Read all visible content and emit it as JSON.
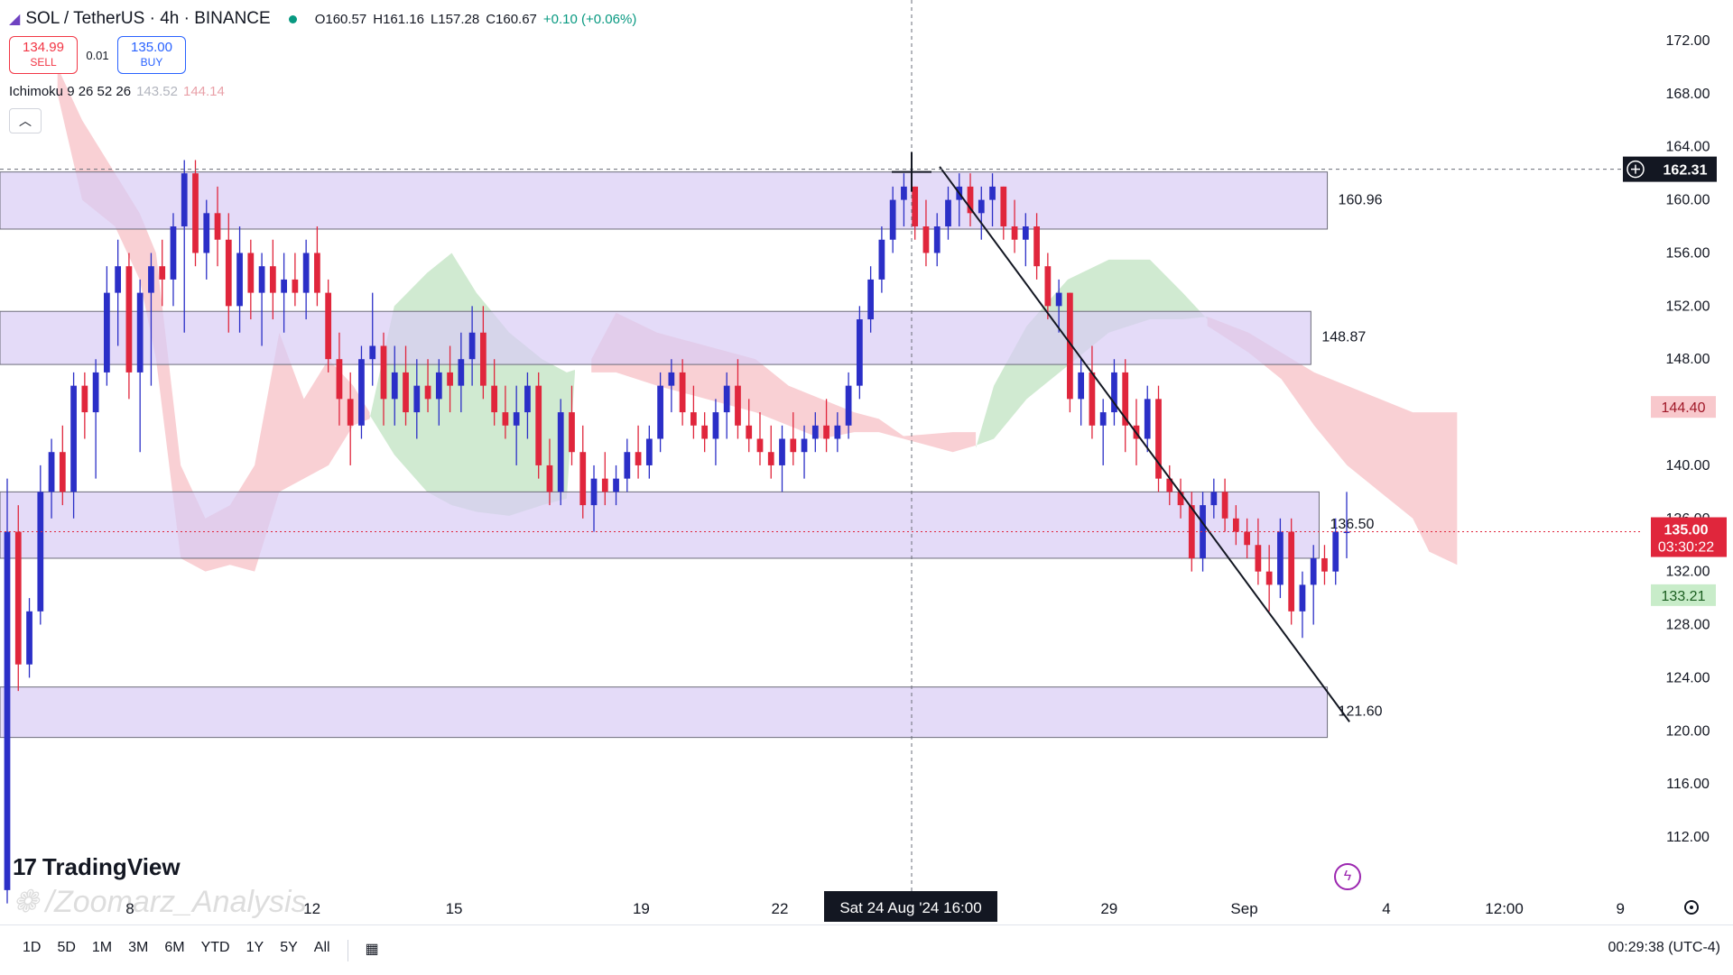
{
  "header": {
    "symbol": "SOL / TetherUS · 4h · BINANCE",
    "open": "O160.57",
    "high": "H161.16",
    "low": "L157.28",
    "close": "C160.67",
    "change": "+0.10 (+0.06%)"
  },
  "trade": {
    "sell_price": "134.99",
    "sell_label": "SELL",
    "spread": "0.01",
    "buy_price": "135.00",
    "buy_label": "BUY"
  },
  "indicator": {
    "name": "Ichimoku 9 26 52 26",
    "value1": "143.52",
    "value2": "144.14"
  },
  "branding": {
    "logo": "TradingView",
    "watermark": "/Zoomarz_Analysis"
  },
  "timeframes": [
    "1D",
    "5D",
    "1M",
    "3M",
    "6M",
    "YTD",
    "1Y",
    "5Y",
    "All"
  ],
  "clock": "00:29:38 (UTC-4)",
  "colors": {
    "bull": "#2b2fc7",
    "bear": "#e0263c",
    "zone": "#d9ccf5",
    "cloud_green": "#c8e6c9",
    "cloud_red": "#f8c8cc"
  },
  "chart_data": {
    "type": "candlestick",
    "symbol": "SOL/USDT",
    "interval": "4h",
    "ylim": [
      110,
      174
    ],
    "y_ticks": [
      "172.00",
      "168.00",
      "164.00",
      "160.00",
      "156.00",
      "152.00",
      "148.00",
      "144.00",
      "140.00",
      "136.00",
      "132.00",
      "128.00",
      "124.00",
      "120.00",
      "116.00",
      "112.00"
    ],
    "x_ticks": [
      {
        "label": "8",
        "pos": 0.075
      },
      {
        "label": "12",
        "pos": 0.18
      },
      {
        "label": "15",
        "pos": 0.262
      },
      {
        "label": "19",
        "pos": 0.37
      },
      {
        "label": "22",
        "pos": 0.45
      },
      {
        "label": "29",
        "pos": 0.64
      },
      {
        "label": "Sep",
        "pos": 0.718
      },
      {
        "label": "4",
        "pos": 0.8
      },
      {
        "label": "12:00",
        "pos": 0.868
      },
      {
        "label": "9",
        "pos": 0.935
      }
    ],
    "crosshair": {
      "time_label": "Sat 24 Aug '24   16:00",
      "price": "162.31"
    },
    "price_labels": [
      {
        "value": 144.4,
        "text": "144.40",
        "style": "cloud"
      },
      {
        "value": 135.0,
        "text": "135.00",
        "countdown": "03:30:22",
        "style": "current"
      },
      {
        "value": 133.21,
        "text": "133.21",
        "style": "green"
      }
    ],
    "zones": [
      {
        "top": 162.1,
        "bottom": 157.8,
        "label": "160.96",
        "end": 0.808
      },
      {
        "top": 151.6,
        "bottom": 147.6,
        "label": "148.87",
        "end": 0.798
      },
      {
        "top": 138.0,
        "bottom": 133.0,
        "label": "136.50",
        "end": 0.803
      },
      {
        "top": 123.3,
        "bottom": 119.5,
        "label": "121.60",
        "end": 0.808
      }
    ],
    "trendline": {
      "from": [
        0.572,
        162.5
      ],
      "to": [
        0.816,
        120.0
      ]
    },
    "cloud_green": [
      [
        0.225,
        143.5,
        143.8
      ],
      [
        0.24,
        152.0,
        140.8
      ],
      [
        0.26,
        154.5,
        138.0
      ],
      [
        0.275,
        156.0,
        137.0
      ],
      [
        0.29,
        153.0,
        136.5
      ],
      [
        0.31,
        150.0,
        136.2
      ],
      [
        0.33,
        148.0,
        137.0
      ],
      [
        0.345,
        147.0,
        137.5
      ],
      [
        0.35,
        147.2,
        147.0
      ],
      [
        0.594,
        141.3,
        141.5
      ],
      [
        0.605,
        146.0,
        142.0
      ],
      [
        0.625,
        150.5,
        145.0
      ],
      [
        0.65,
        154.0,
        147.5
      ],
      [
        0.675,
        155.5,
        150.0
      ],
      [
        0.7,
        155.5,
        151.0
      ],
      [
        0.72,
        153.0,
        151.0
      ],
      [
        0.735,
        151.0,
        151.2
      ]
    ],
    "cloud_red": [
      [
        0.035,
        170.0,
        168.0
      ],
      [
        0.05,
        166.0,
        160.0
      ],
      [
        0.07,
        162.0,
        158.0
      ],
      [
        0.085,
        159.0,
        154.0
      ],
      [
        0.095,
        156.0,
        148.0
      ],
      [
        0.11,
        140.0,
        133.0
      ],
      [
        0.125,
        136.0,
        132.0
      ],
      [
        0.14,
        137.0,
        132.5
      ],
      [
        0.155,
        140.0,
        132.0
      ],
      [
        0.17,
        150.0,
        138.0
      ],
      [
        0.185,
        145.0,
        139.0
      ],
      [
        0.2,
        148.0,
        140.0
      ],
      [
        0.215,
        146.0,
        143.0
      ],
      [
        0.225,
        144.0,
        143.5
      ],
      [
        0.36,
        148.0,
        147.0
      ],
      [
        0.375,
        151.5,
        147.0
      ],
      [
        0.4,
        150.0,
        146.0
      ],
      [
        0.43,
        149.0,
        145.0
      ],
      [
        0.46,
        148.0,
        144.0
      ],
      [
        0.48,
        146.0,
        143.0
      ],
      [
        0.5,
        145.0,
        142.0
      ],
      [
        0.52,
        144.0,
        142.5
      ],
      [
        0.535,
        143.5,
        142.5
      ],
      [
        0.55,
        142.2,
        142.0
      ],
      [
        0.58,
        142.5,
        141.0
      ],
      [
        0.594,
        142.5,
        141.5
      ],
      [
        0.735,
        151.2,
        150.5
      ],
      [
        0.76,
        150.0,
        148.5
      ],
      [
        0.78,
        148.5,
        146.5
      ],
      [
        0.8,
        147.0,
        143.0
      ],
      [
        0.82,
        146.0,
        140.0
      ],
      [
        0.84,
        145.0,
        138.0
      ],
      [
        0.86,
        144.0,
        136.0
      ],
      [
        0.87,
        144.0,
        133.5
      ],
      [
        0.887,
        144.0,
        132.5
      ]
    ],
    "candles": [
      [
        108,
        139,
        107,
        135
      ],
      [
        135,
        137,
        123,
        125
      ],
      [
        125,
        130,
        124,
        129
      ],
      [
        129,
        140,
        128,
        138
      ],
      [
        138,
        142,
        136,
        141
      ],
      [
        141,
        143,
        137,
        138
      ],
      [
        138,
        147,
        136,
        146
      ],
      [
        146,
        147,
        142,
        144
      ],
      [
        144,
        148,
        139,
        147
      ],
      [
        147,
        155,
        146,
        153
      ],
      [
        153,
        157,
        149,
        155
      ],
      [
        155,
        156,
        145,
        147
      ],
      [
        147,
        154,
        141,
        153
      ],
      [
        153,
        156,
        146,
        155
      ],
      [
        155,
        157,
        152,
        154
      ],
      [
        154,
        159,
        152,
        158
      ],
      [
        158,
        163,
        150,
        162
      ],
      [
        162,
        163,
        155,
        156
      ],
      [
        156,
        160,
        154,
        159
      ],
      [
        159,
        161,
        155,
        157
      ],
      [
        157,
        159,
        150,
        152
      ],
      [
        152,
        158,
        150,
        156
      ],
      [
        156,
        157,
        151,
        153
      ],
      [
        153,
        156,
        149,
        155
      ],
      [
        155,
        157,
        151,
        153
      ],
      [
        153,
        156,
        150,
        154
      ],
      [
        154,
        156,
        152,
        153
      ],
      [
        153,
        157,
        151,
        156
      ],
      [
        156,
        158,
        152,
        153
      ],
      [
        153,
        154,
        147,
        148
      ],
      [
        148,
        150,
        143,
        145
      ],
      [
        145,
        147,
        140,
        143
      ],
      [
        143,
        149,
        142,
        148
      ],
      [
        148,
        153,
        146,
        149
      ],
      [
        149,
        150,
        143,
        145
      ],
      [
        145,
        149,
        143,
        147
      ],
      [
        147,
        149,
        143,
        144
      ],
      [
        144,
        148,
        142,
        146
      ],
      [
        146,
        148,
        144,
        145
      ],
      [
        145,
        148,
        143,
        147
      ],
      [
        147,
        149,
        144,
        146
      ],
      [
        146,
        150,
        144,
        148
      ],
      [
        148,
        152,
        146,
        150
      ],
      [
        150,
        152,
        145,
        146
      ],
      [
        146,
        148,
        143,
        144
      ],
      [
        144,
        146,
        142,
        143
      ],
      [
        143,
        146,
        140,
        144
      ],
      [
        144,
        147,
        142,
        146
      ],
      [
        146,
        147,
        139,
        140
      ],
      [
        140,
        142,
        137,
        138
      ],
      [
        138,
        145,
        137,
        144
      ],
      [
        144,
        146,
        140,
        141
      ],
      [
        141,
        143,
        136,
        137
      ],
      [
        137,
        140,
        135,
        139
      ],
      [
        139,
        141,
        137,
        138
      ],
      [
        138,
        140,
        137,
        139
      ],
      [
        139,
        142,
        138,
        141
      ],
      [
        141,
        143,
        139,
        140
      ],
      [
        140,
        143,
        139,
        142
      ],
      [
        142,
        147,
        141,
        146
      ],
      [
        146,
        148,
        144,
        147
      ],
      [
        147,
        148,
        143,
        144
      ],
      [
        144,
        146,
        142,
        143
      ],
      [
        143,
        144,
        141,
        142
      ],
      [
        142,
        145,
        140,
        144
      ],
      [
        144,
        147,
        142,
        146
      ],
      [
        146,
        148,
        142,
        143
      ],
      [
        143,
        145,
        141,
        142
      ],
      [
        142,
        144,
        140,
        141
      ],
      [
        141,
        143,
        139,
        140
      ],
      [
        140,
        143,
        138,
        142
      ],
      [
        142,
        144,
        140,
        141
      ],
      [
        141,
        143,
        139,
        142
      ],
      [
        142,
        144,
        141,
        143
      ],
      [
        143,
        145,
        141,
        142
      ],
      [
        142,
        144,
        141,
        143
      ],
      [
        143,
        147,
        142,
        146
      ],
      [
        146,
        152,
        145,
        151
      ],
      [
        151,
        155,
        150,
        154
      ],
      [
        154,
        158,
        153,
        157
      ],
      [
        157,
        161,
        156,
        160
      ],
      [
        160,
        162,
        158,
        161
      ],
      [
        161,
        161,
        157,
        158
      ],
      [
        158,
        160,
        155,
        156
      ],
      [
        156,
        159,
        155,
        158
      ],
      [
        158,
        161,
        157,
        160
      ],
      [
        160,
        162,
        158,
        161
      ],
      [
        161,
        162,
        158,
        159
      ],
      [
        159,
        161,
        157,
        160
      ],
      [
        160,
        162,
        158,
        161
      ],
      [
        161,
        161,
        157,
        158
      ],
      [
        158,
        160,
        156,
        157
      ],
      [
        157,
        159,
        155,
        158
      ],
      [
        158,
        159,
        154,
        155
      ],
      [
        155,
        156,
        151,
        152
      ],
      [
        152,
        154,
        150,
        153
      ],
      [
        153,
        153,
        144,
        145
      ],
      [
        145,
        148,
        143,
        147
      ],
      [
        147,
        149,
        142,
        143
      ],
      [
        143,
        145,
        140,
        144
      ],
      [
        144,
        148,
        143,
        147
      ],
      [
        147,
        148,
        141,
        143
      ],
      [
        143,
        145,
        140,
        142
      ],
      [
        142,
        146,
        141,
        145
      ],
      [
        145,
        146,
        138,
        139
      ],
      [
        139,
        140,
        137,
        138
      ],
      [
        138,
        139,
        136,
        137
      ],
      [
        137,
        138,
        132,
        133
      ],
      [
        133,
        138,
        132,
        137
      ],
      [
        137,
        139,
        136,
        138
      ],
      [
        138,
        139,
        135,
        136
      ],
      [
        136,
        137,
        134,
        135
      ],
      [
        135,
        136,
        133,
        134
      ],
      [
        134,
        136,
        131,
        132
      ],
      [
        132,
        134,
        129,
        131
      ],
      [
        131,
        136,
        130,
        135
      ],
      [
        135,
        136,
        128,
        129
      ],
      [
        129,
        132,
        127,
        131
      ],
      [
        131,
        134,
        128,
        133
      ],
      [
        133,
        134,
        131,
        132
      ],
      [
        132,
        136,
        131,
        135
      ],
      [
        135,
        138,
        133,
        135
      ]
    ]
  }
}
